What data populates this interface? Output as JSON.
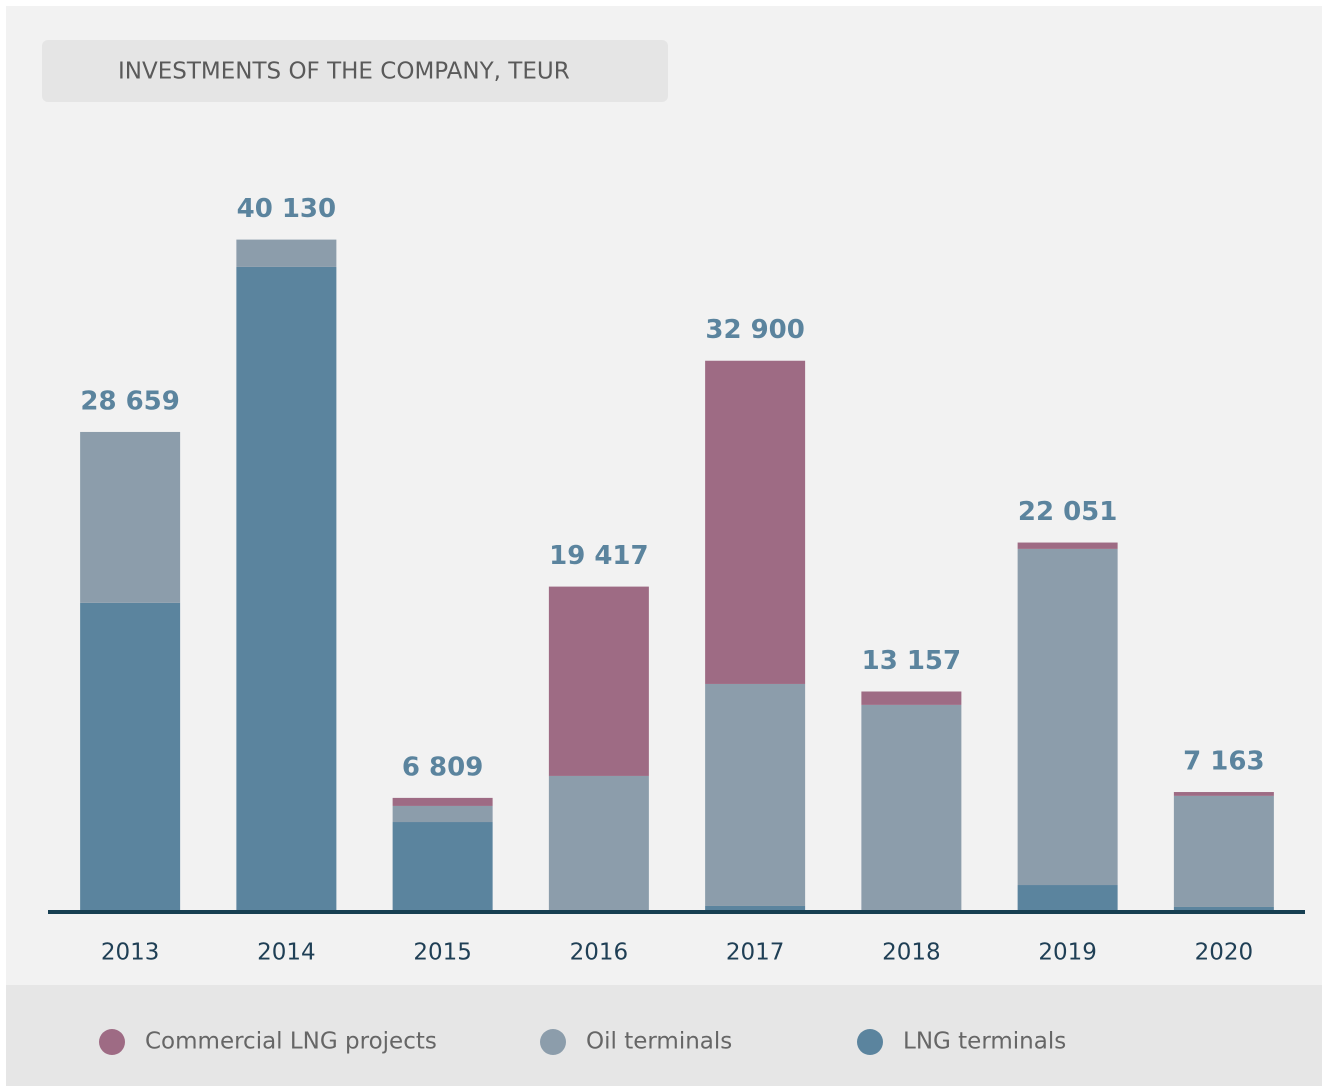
{
  "chart_data": {
    "type": "stacked_bar",
    "title": "INVESTMENTS OF THE COMPANY, TEUR",
    "categories": [
      "2013",
      "2014",
      "2015",
      "2016",
      "2017",
      "2018",
      "2019",
      "2020"
    ],
    "series": [
      {
        "name": "Commercial LNG projects",
        "color": "#9e6b84",
        "values": [
          0,
          0,
          480,
          11300,
          19290,
          800,
          380,
          230
        ]
      },
      {
        "name": "Oil terminals",
        "color": "#8c9dab",
        "values": [
          10200,
          1630,
          960,
          8120,
          13250,
          12360,
          20060,
          6630
        ]
      },
      {
        "name": "LNG terminals",
        "color": "#5b849e",
        "values": [
          18450,
          38500,
          5370,
          0,
          360,
          0,
          1610,
          300
        ]
      }
    ],
    "totals": [
      28659,
      40130,
      6809,
      19417,
      32900,
      13157,
      22051,
      7163
    ],
    "total_labels": [
      "28 659",
      "40 130",
      "6 809",
      "19 417",
      "32 900",
      "13 157",
      "22 051",
      "7 163"
    ],
    "ylim": [
      0,
      45000
    ],
    "legend": "bottom"
  }
}
